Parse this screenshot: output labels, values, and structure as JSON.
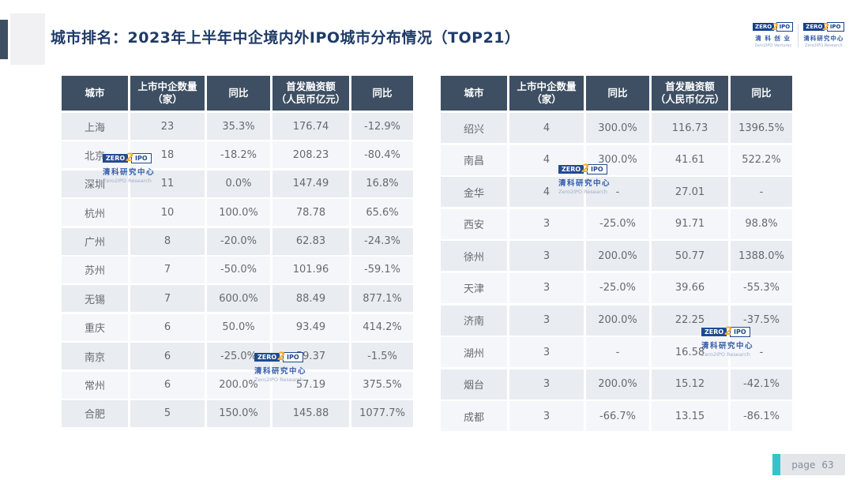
{
  "slide": {
    "title": "城市排名：2023年上半年中企境内外IPO城市分布情况（TOP21）",
    "page_label": "page",
    "page_number": "63"
  },
  "brand": {
    "badge": {
      "zero": "ZERO",
      "two": "2",
      "ipo": "IPO"
    },
    "ventures": {
      "chinese": "清 科 创 业",
      "english": "Zero2IPO Ventures"
    },
    "research": {
      "chinese": "清科研究中心",
      "english": "Zero2IPO Research"
    }
  },
  "columns": [
    "城市",
    "上市中企数量\n（家）",
    "同比",
    "首发融资额\n（人民币亿元）",
    "同比"
  ],
  "tables": {
    "left": {
      "rows": [
        [
          "上海",
          "23",
          "35.3%",
          "176.74",
          "-12.9%"
        ],
        [
          "北京",
          "18",
          "-18.2%",
          "208.23",
          "-80.4%"
        ],
        [
          "深圳",
          "11",
          "0.0%",
          "147.49",
          "16.8%"
        ],
        [
          "杭州",
          "10",
          "100.0%",
          "78.78",
          "65.6%"
        ],
        [
          "广州",
          "8",
          "-20.0%",
          "62.83",
          "-24.3%"
        ],
        [
          "苏州",
          "7",
          "-50.0%",
          "101.96",
          "-59.1%"
        ],
        [
          "无锡",
          "7",
          "600.0%",
          "88.49",
          "877.1%"
        ],
        [
          "重庆",
          "6",
          "50.0%",
          "93.49",
          "414.2%"
        ],
        [
          "南京",
          "6",
          "-25.0%",
          "59.37",
          "-1.5%"
        ],
        [
          "常州",
          "6",
          "200.0%",
          "57.19",
          "375.5%"
        ],
        [
          "合肥",
          "5",
          "150.0%",
          "145.88",
          "1077.7%"
        ]
      ]
    },
    "right": {
      "rows": [
        [
          "绍兴",
          "4",
          "300.0%",
          "116.73",
          "1396.5%"
        ],
        [
          "南昌",
          "4",
          "300.0%",
          "41.61",
          "522.2%"
        ],
        [
          "金华",
          "4",
          "-",
          "27.01",
          "-"
        ],
        [
          "西安",
          "3",
          "-25.0%",
          "91.71",
          "98.8%"
        ],
        [
          "徐州",
          "3",
          "200.0%",
          "50.77",
          "1388.0%"
        ],
        [
          "天津",
          "3",
          "-25.0%",
          "39.66",
          "-55.3%"
        ],
        [
          "济南",
          "3",
          "200.0%",
          "22.25",
          "-37.5%"
        ],
        [
          "湖州",
          "3",
          "-",
          "16.58",
          "-"
        ],
        [
          "烟台",
          "3",
          "200.0%",
          "15.12",
          "-42.1%"
        ],
        [
          "成都",
          "3",
          "-66.7%",
          "13.15",
          "-86.1%"
        ]
      ]
    }
  },
  "colors": {
    "header_bg": "#3e4f63",
    "row_odd": "#e9ecf1",
    "row_even": "#f5f6f9",
    "title_text": "#1e3a67",
    "brand_blue": "#16418c",
    "brand_orange": "#f5a81c",
    "page_accent_teal": "#30c6c9"
  }
}
